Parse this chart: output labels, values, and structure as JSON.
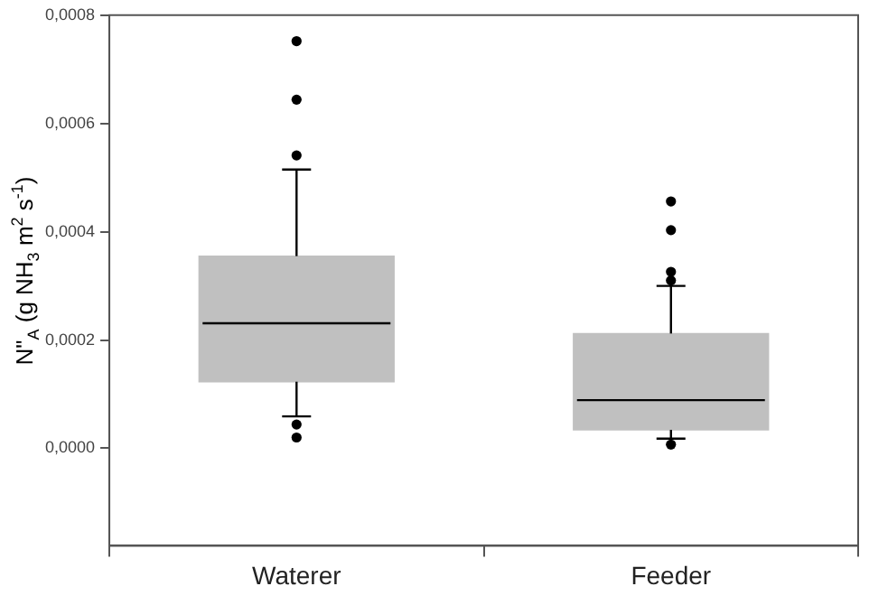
{
  "chart_data": {
    "type": "box",
    "ylabel": "N\"$_{A}$ (g NH$_{3}$ m$^{2}$ s$^{-1}$)",
    "categories": [
      "Waterer",
      "Feeder"
    ],
    "boxes": [
      {
        "low": 5.9e-05,
        "q1": 0.000123,
        "median": 0.000231,
        "q3": 0.000355,
        "high": 0.000515,
        "outliers": [
          0.000752,
          0.000644,
          0.000541,
          4.4e-05,
          2e-05
        ]
      },
      {
        "low": 1.8e-05,
        "q1": 3.4e-05,
        "median": 8.9e-05,
        "q3": 0.000212,
        "high": 0.0003,
        "outliers": [
          0.000456,
          0.000403,
          0.000326,
          0.00031,
          7e-06
        ]
      }
    ],
    "color": "#c0c0c0",
    "ylim": [
      -0.00018,
      0.0008
    ],
    "yticks": [
      {
        "value": 0,
        "label": "0,0000"
      },
      {
        "value": 0.0002,
        "label": "0,0002"
      },
      {
        "value": 0.0004,
        "label": "0,0004"
      },
      {
        "value": 0.0006,
        "label": "0,0006"
      },
      {
        "value": 0.0008,
        "label": "0,0008"
      }
    ],
    "grid": false,
    "legend": false
  }
}
